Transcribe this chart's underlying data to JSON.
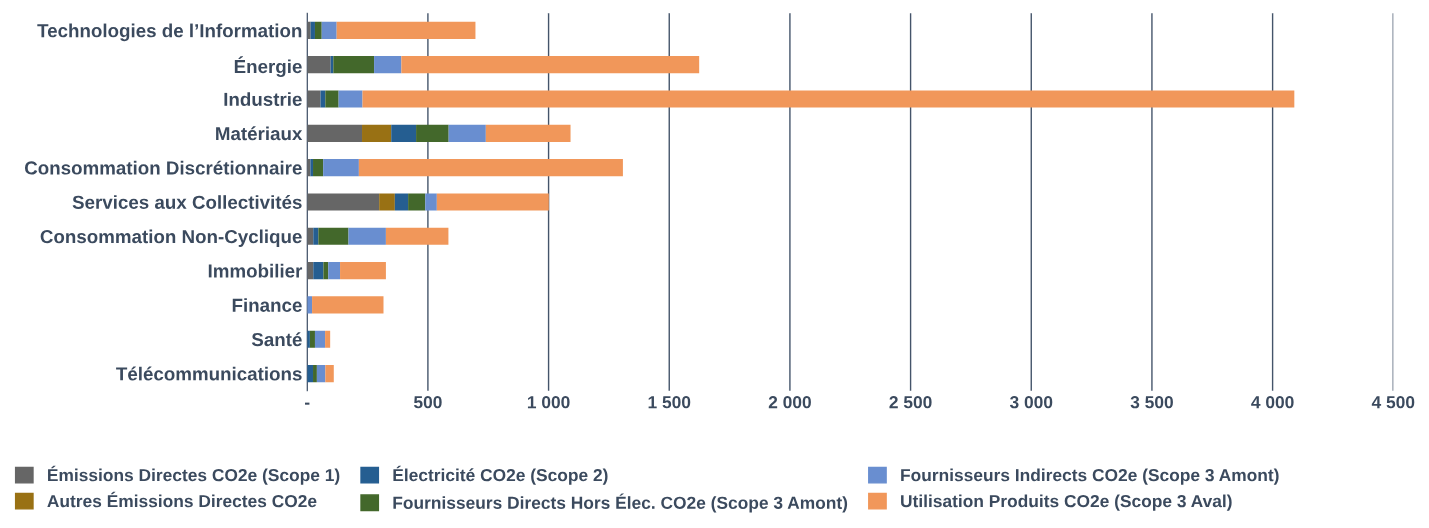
{
  "chart_data": {
    "type": "bar",
    "orientation": "horizontal",
    "stacked": true,
    "categories": [
      "Technologies de l’Information",
      "Énergie",
      "Industrie",
      "Matériaux",
      "Consommation Discrétionnaire",
      "Services aux Collectivités",
      "Consommation Non-Cyclique",
      "Immobilier",
      "Finance",
      "Santé",
      "Télécommunications"
    ],
    "series": [
      {
        "name": "Émissions Directes CO2e (Scope 1)",
        "color": "#666666",
        "values": [
          14,
          97,
          55,
          227,
          13,
          298,
          25,
          25,
          null,
          null,
          null
        ]
      },
      {
        "name": "Autres Émissions Directes CO2e",
        "color": "#997114",
        "values": [
          null,
          null,
          null,
          121,
          null,
          65,
          null,
          null,
          null,
          null,
          null
        ]
      },
      {
        "name": "Électricité CO2e (Scope 2)",
        "color": "#255e91",
        "values": [
          18,
          11,
          20,
          103,
          11,
          55,
          21,
          42,
          null,
          11,
          24
        ]
      },
      {
        "name": "Fournisseurs Directs Hors Élec. CO2e (Scope 3 Amont)",
        "color": "#43682b",
        "values": [
          28,
          169,
          55,
          135,
          42,
          71,
          125,
          20,
          null,
          21,
          16
        ]
      },
      {
        "name": "Fournisseurs Indirects CO2e (Scope 3 Amont)",
        "color": "#698ed0",
        "values": [
          62,
          113,
          99,
          154,
          148,
          48,
          155,
          49,
          20,
          42,
          35
        ]
      },
      {
        "name": "Utilisation Produits CO2e (Scope 3 Aval)",
        "color": "#f1975a",
        "values": [
          575,
          1234,
          3861,
          351,
          1094,
          464,
          259,
          190,
          296,
          21,
          35
        ]
      }
    ],
    "xlim": [
      0,
      4500
    ],
    "xticks": [
      {
        "value": 0,
        "label": "-"
      },
      500,
      {
        "value": 1000,
        "label": "1 000"
      },
      {
        "value": 1500,
        "label": "1 500"
      },
      {
        "value": 2000,
        "label": "2 000"
      },
      {
        "value": 2500,
        "label": "2 500"
      },
      {
        "value": 3000,
        "label": "3 000"
      },
      {
        "value": 3500,
        "label": "3 500"
      },
      {
        "value": 4000,
        "label": "4 000"
      },
      {
        "value": 4500,
        "label": "4 500"
      }
    ],
    "grid": "x",
    "legend": "bottom"
  }
}
